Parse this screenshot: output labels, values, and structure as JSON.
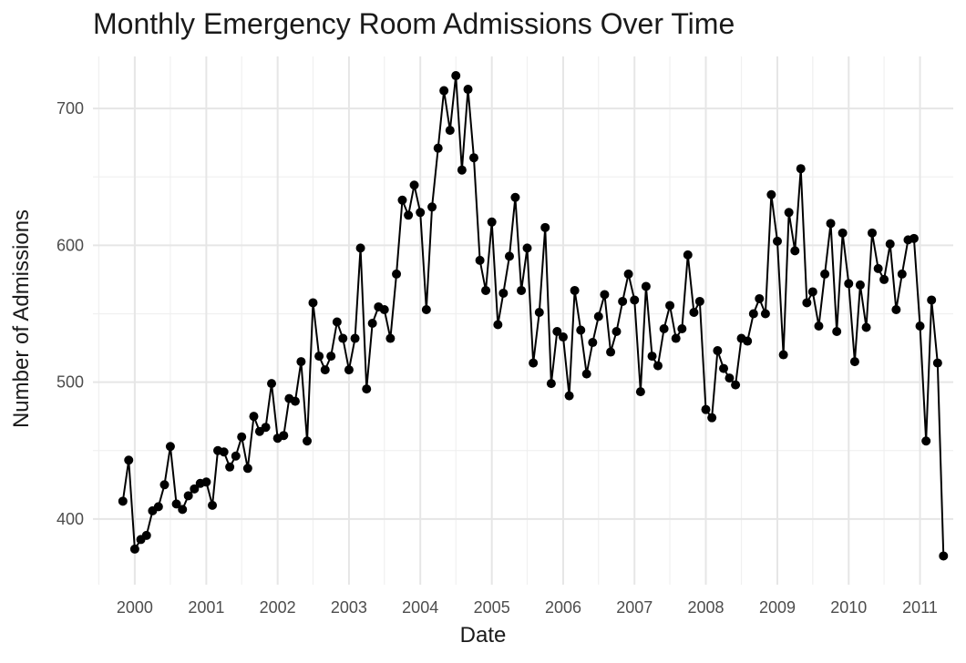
{
  "chart_data": {
    "type": "line",
    "title": "Monthly Emergency Room Admissions Over Time",
    "xlabel": "Date",
    "ylabel": "Number of Admissions",
    "x_start": "1999-11",
    "x_interval": "1 month",
    "xlim": [
      "1999-06-01",
      "2011-06-20"
    ],
    "ylim": [
      352,
      738
    ],
    "x_ticks": [
      "2000",
      "2001",
      "2002",
      "2003",
      "2004",
      "2005",
      "2006",
      "2007",
      "2008",
      "2009",
      "2010",
      "2011"
    ],
    "y_ticks": [
      400,
      500,
      600,
      700
    ],
    "grid": true,
    "markers": true,
    "series": [
      {
        "values": [
          413,
          443,
          378,
          385,
          388,
          406,
          409,
          425,
          453,
          411,
          407,
          417,
          422,
          426,
          427,
          410,
          450,
          449,
          438,
          446,
          460,
          437,
          475,
          464,
          467,
          499,
          459,
          461,
          488,
          486,
          515,
          457,
          558,
          519,
          509,
          519,
          544,
          532,
          509,
          532,
          598,
          495,
          543,
          555,
          553,
          532,
          579,
          633,
          622,
          644,
          624,
          553,
          628,
          671,
          713,
          684,
          724,
          655,
          714,
          664,
          589,
          567,
          617,
          542,
          565,
          592,
          635,
          567,
          598,
          514,
          551,
          613,
          499,
          537,
          533,
          490,
          567,
          538,
          506,
          529,
          548,
          564,
          522,
          537,
          559,
          579,
          560,
          493,
          570,
          519,
          512,
          539,
          556,
          532,
          539,
          593,
          551,
          559,
          480,
          474,
          523,
          510,
          503,
          498,
          532,
          530,
          550,
          561,
          550,
          637,
          603,
          520,
          624,
          596,
          656,
          558,
          566,
          541,
          579,
          616,
          537,
          609,
          572,
          515,
          571,
          540,
          609,
          583,
          575,
          601,
          553,
          579,
          604,
          605,
          541,
          457,
          560,
          514,
          373
        ]
      }
    ]
  }
}
